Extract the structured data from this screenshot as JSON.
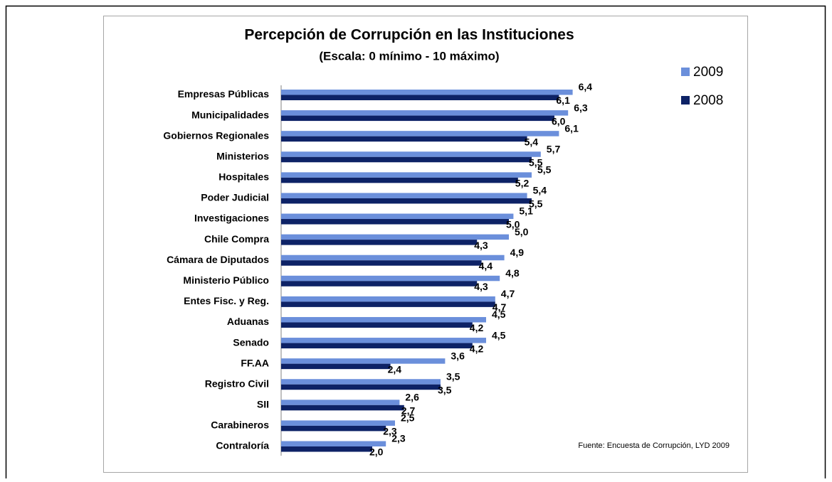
{
  "chart_data": {
    "type": "barh",
    "title": "Percepción de Corrupción en las Instituciones",
    "subtitle": "(Escala: 0 mínimo - 10 máximo)",
    "source": "Fuente: Encuesta de Corrupción, LYD 2009",
    "categories": [
      "Empresas Públicas",
      "Municipalidades",
      "Gobiernos Regionales",
      "Ministerios",
      "Hospitales",
      "Poder Judicial",
      "Investigaciones",
      "Chile Compra",
      "Cámara de Diputados",
      "Ministerio Público",
      "Entes Fisc. y Reg.",
      "Aduanas",
      "Senado",
      "FF.AA",
      "Registro Civil",
      "SII",
      "Carabineros",
      "Contraloría"
    ],
    "series": [
      {
        "name": "2009",
        "color": "#6b8fdb",
        "values": [
          6.4,
          6.3,
          6.1,
          5.7,
          5.5,
          5.4,
          5.1,
          5.0,
          4.9,
          4.8,
          4.7,
          4.5,
          4.5,
          3.6,
          3.5,
          2.6,
          2.5,
          2.3
        ],
        "value_labels": [
          "6,4",
          "6,3",
          "6,1",
          "5,7",
          "5,5",
          "5,4",
          "5,1",
          "5,0",
          "4,9",
          "4,8",
          "4,7",
          "4,5",
          "4,5",
          "3,6",
          "3,5",
          "2,6",
          "2,5",
          "2,3"
        ]
      },
      {
        "name": "2008",
        "color": "#0d2266",
        "values": [
          6.1,
          6.0,
          5.4,
          5.5,
          5.2,
          5.5,
          5.0,
          4.3,
          4.4,
          4.3,
          4.7,
          4.2,
          4.2,
          2.4,
          3.5,
          2.7,
          2.3,
          2.0
        ],
        "value_labels": [
          "6,1",
          "6,0",
          "5,4",
          "5,5",
          "5,2",
          "5,5",
          "5,0",
          "4,3",
          "4,4",
          "4,3",
          "4,7",
          "4,2",
          "4,2",
          "2,4",
          "3,5",
          "2,7",
          "2,3",
          "2,0"
        ]
      }
    ],
    "xlim": [
      0,
      10
    ],
    "legend": "top-right"
  }
}
